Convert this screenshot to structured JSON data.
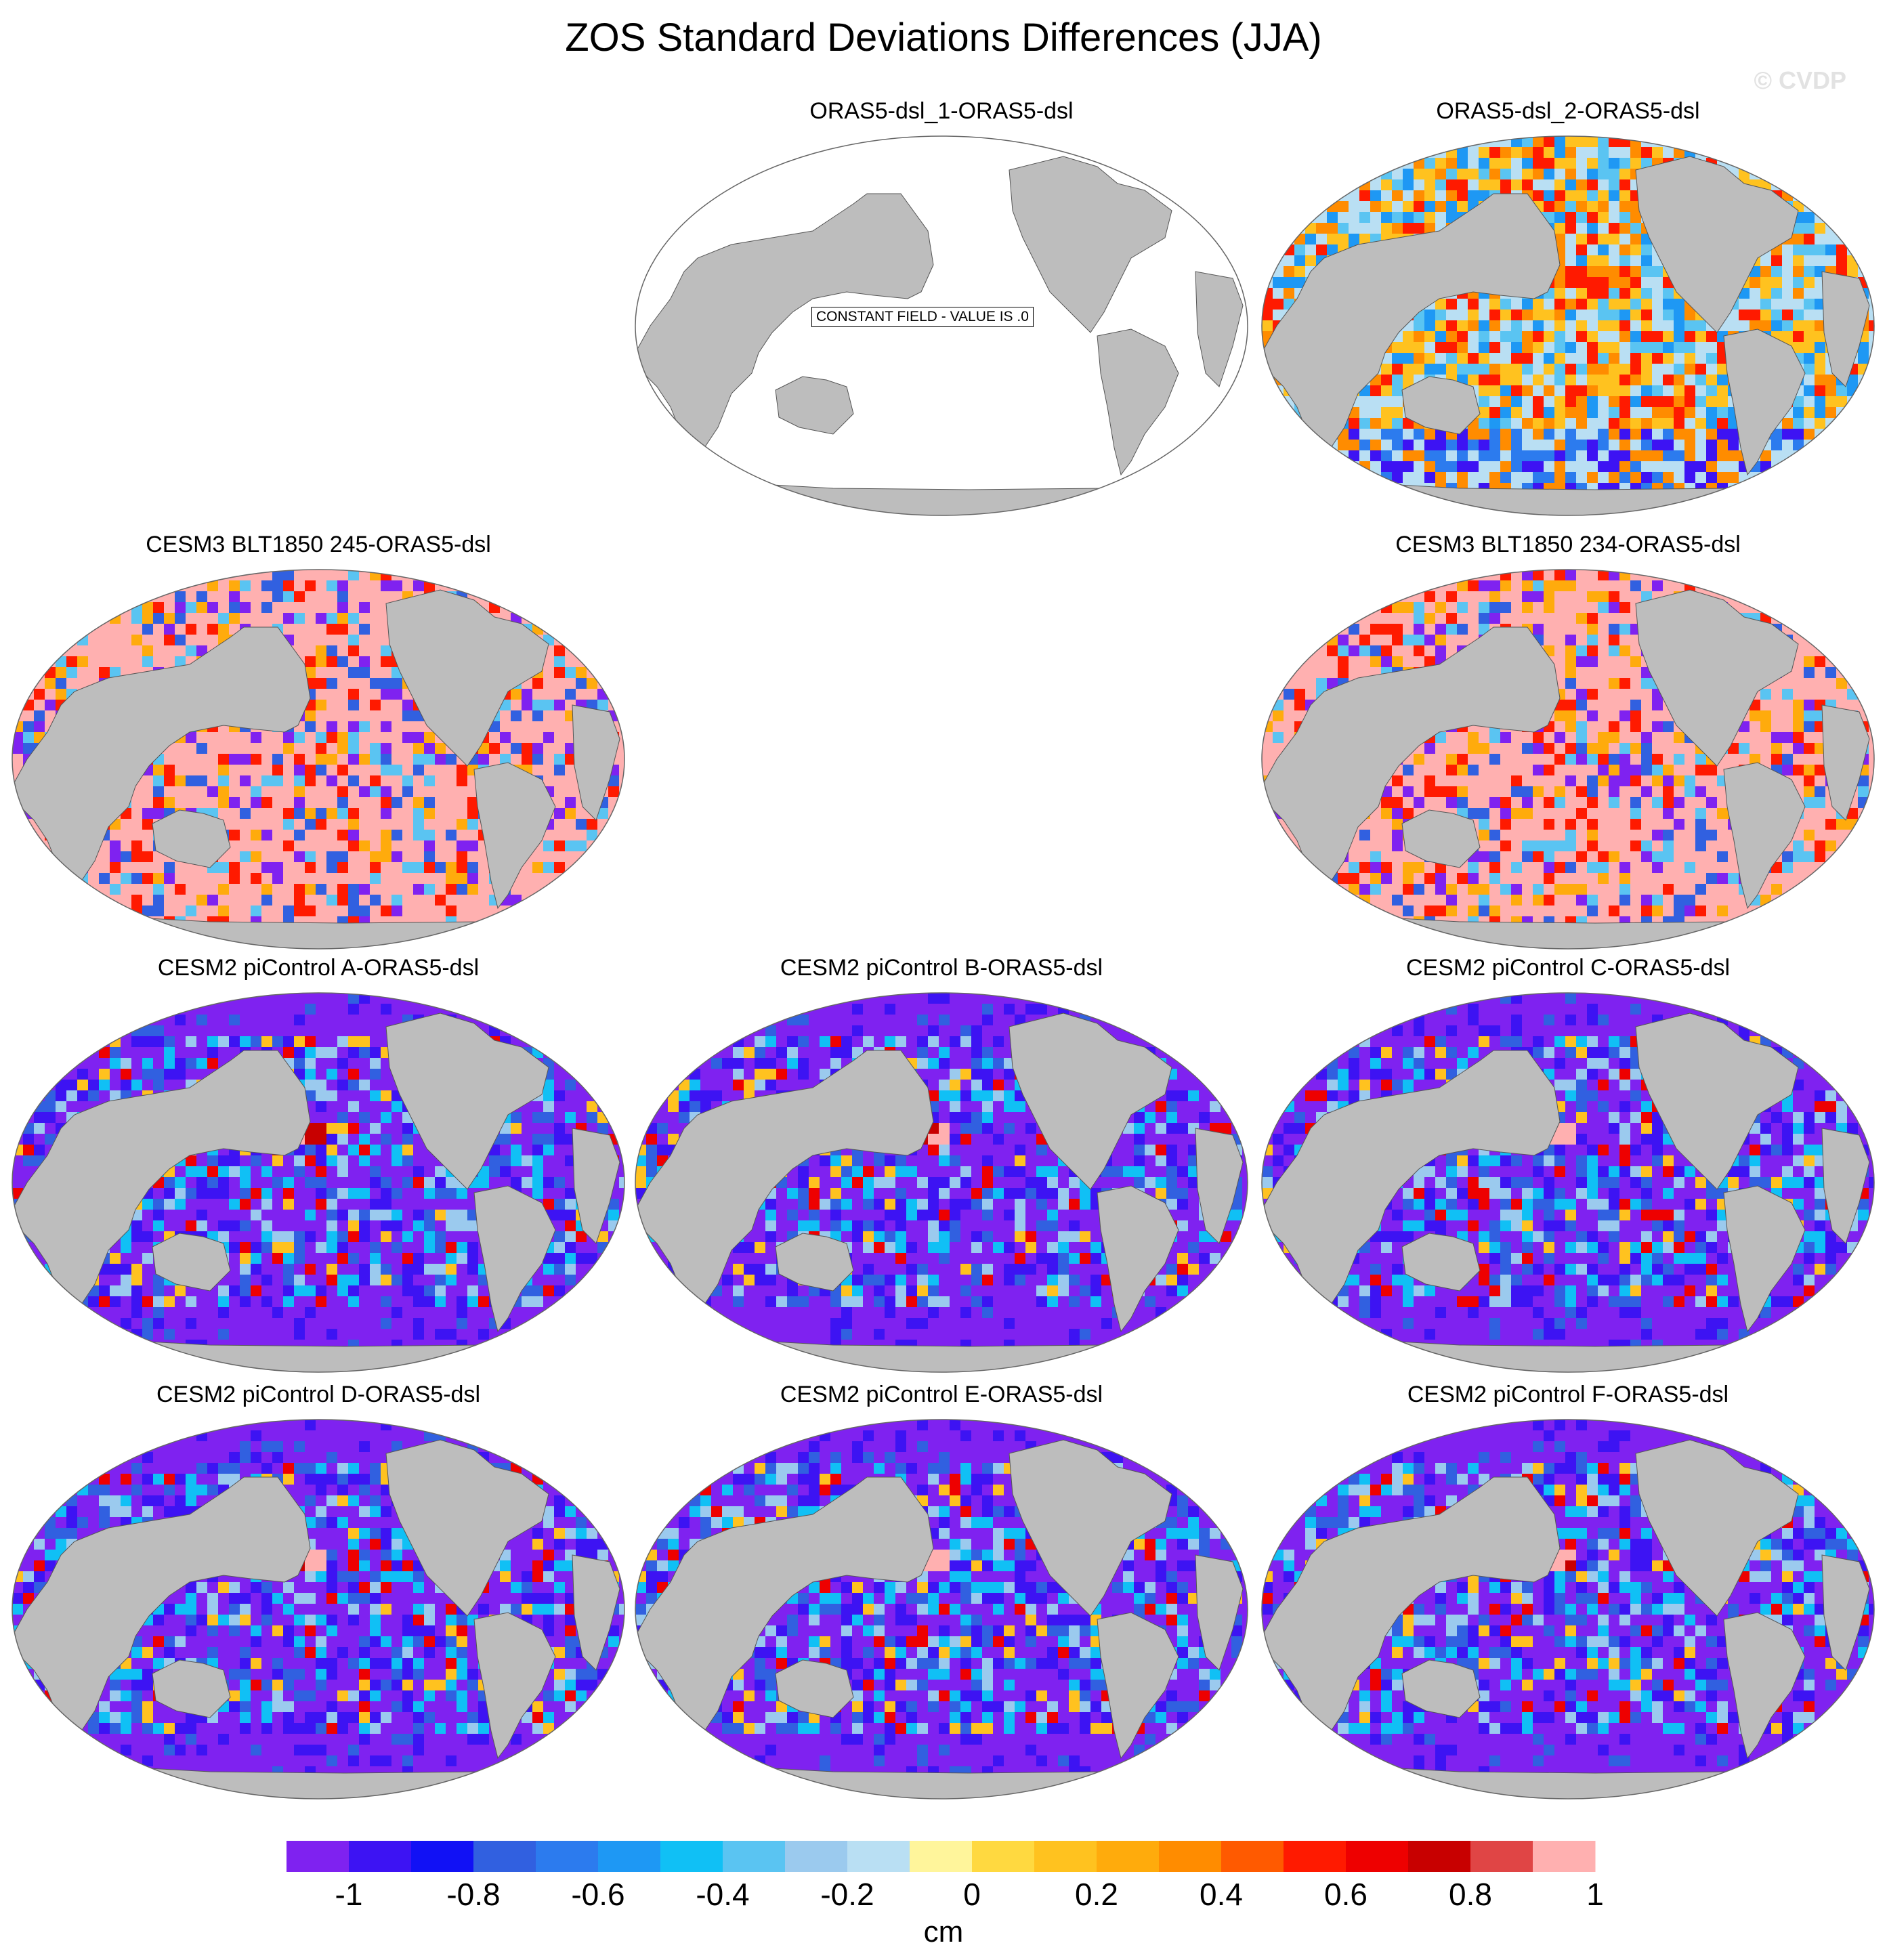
{
  "title": "ZOS Standard Deviations Differences (JJA)",
  "watermark": "© CVDP",
  "constant_field_label": "CONSTANT FIELD - VALUE IS .0",
  "colors": {
    "land": "#bdbdbd",
    "ocean_empty": "#ffffff",
    "scale": [
      "#7f22f0",
      "#3d13f3",
      "#1111f5",
      "#3160e0",
      "#2c7bee",
      "#1e98f4",
      "#10c0f5",
      "#5ac4f2",
      "#9bcaee",
      "#b9dff3",
      "#fff59b",
      "#ffd940",
      "#ffc21f",
      "#ffab0c",
      "#ff8c00",
      "#ff5a00",
      "#ff1a00",
      "#ee0000",
      "#c80000",
      "#e04545",
      "#ffb0b0"
    ]
  },
  "colorbar": {
    "ticks": [
      "-1",
      "-0.8",
      "-0.6",
      "-0.4",
      "-0.2",
      "0",
      "0.2",
      "0.4",
      "0.6",
      "0.8",
      "1"
    ],
    "units": "cm"
  },
  "panels": [
    {
      "title": "ORAS5-dsl_1-ORAS5-dsl",
      "style": "constant"
    },
    {
      "title": "ORAS5-dsl_2-ORAS5-dsl",
      "style": "oras2"
    },
    {
      "title": "CESM3 BLT1850 245-ORAS5-dsl",
      "style": "cesm3"
    },
    {
      "title": "CESM3 BLT1850 234-ORAS5-dsl",
      "style": "cesm3"
    },
    {
      "title": "CESM2 piControl A-ORAS5-dsl",
      "style": "cesm2"
    },
    {
      "title": "CESM2 piControl B-ORAS5-dsl",
      "style": "cesm2"
    },
    {
      "title": "CESM2 piControl C-ORAS5-dsl",
      "style": "cesm2"
    },
    {
      "title": "CESM2 piControl D-ORAS5-dsl",
      "style": "cesm2"
    },
    {
      "title": "CESM2 piControl E-ORAS5-dsl",
      "style": "cesm2"
    },
    {
      "title": "CESM2 piControl F-ORAS5-dsl",
      "style": "cesm2"
    }
  ]
}
